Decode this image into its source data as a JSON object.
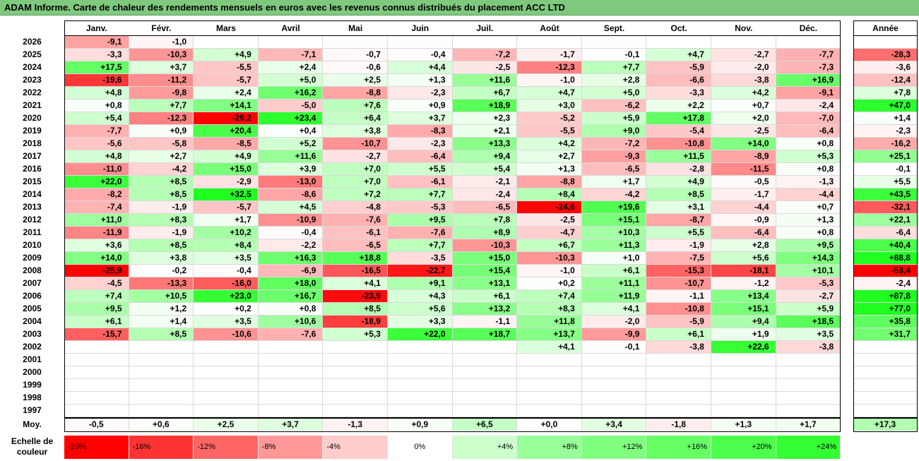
{
  "title": "ADAM Informe. Carte de chaleur des rendements mensuels en euros avec les revenus connus distribués du placement ACC LTD",
  "chart_data": {
    "type": "heatmap",
    "columns": [
      "Janv.",
      "Févr.",
      "Mars",
      "Avril",
      "Mai",
      "Juin",
      "Juil.",
      "Août",
      "Sept.",
      "Oct.",
      "Nov.",
      "Déc."
    ],
    "year_header": "Année",
    "rows": [
      {
        "year": "2026",
        "months": [
          -9.1,
          -1.0,
          null,
          null,
          null,
          null,
          null,
          null,
          null,
          null,
          null,
          null
        ],
        "annual": null
      },
      {
        "year": "2025",
        "months": [
          -3.3,
          -10.3,
          4.9,
          -7.1,
          -0.7,
          -0.4,
          -7.2,
          -1.7,
          -0.1,
          4.7,
          -2.7,
          -7.7
        ],
        "annual": -28.3
      },
      {
        "year": "2024",
        "months": [
          17.5,
          3.7,
          -5.5,
          2.4,
          -0.6,
          4.4,
          -2.5,
          -12.3,
          7.7,
          -5.9,
          -2.0,
          -7.3
        ],
        "annual": -3.6
      },
      {
        "year": "2023",
        "months": [
          -19.6,
          -11.2,
          -5.7,
          5.0,
          2.5,
          1.3,
          11.6,
          -1.0,
          2.8,
          -6.6,
          -3.8,
          16.9
        ],
        "annual": -12.4
      },
      {
        "year": "2022",
        "months": [
          4.8,
          -9.8,
          2.4,
          16.2,
          -8.8,
          -2.3,
          6.7,
          4.7,
          5.0,
          -3.3,
          4.2,
          -9.1
        ],
        "annual": 7.8
      },
      {
        "year": "2021",
        "months": [
          0.8,
          7.7,
          14.1,
          -5.0,
          7.6,
          0.9,
          18.9,
          3.0,
          -6.2,
          2.2,
          0.7,
          -2.4
        ],
        "annual": 47.0
      },
      {
        "year": "2020",
        "months": [
          5.4,
          -12.3,
          -29.2,
          23.4,
          6.4,
          3.7,
          2.3,
          -5.2,
          5.9,
          17.8,
          2.0,
          -7.0
        ],
        "annual": 1.4
      },
      {
        "year": "2019",
        "months": [
          -7.7,
          0.9,
          20.4,
          0.4,
          3.8,
          -8.3,
          2.1,
          -5.5,
          9.0,
          -5.4,
          -2.5,
          -6.4
        ],
        "annual": -2.3
      },
      {
        "year": "2018",
        "months": [
          -5.6,
          -5.8,
          -8.5,
          5.2,
          -10.7,
          -2.3,
          13.3,
          4.2,
          -7.2,
          -10.8,
          14.0,
          0.8
        ],
        "annual": -16.2
      },
      {
        "year": "2017",
        "months": [
          4.8,
          2.7,
          4.9,
          11.6,
          -2.7,
          -6.4,
          9.4,
          2.7,
          -9.3,
          11.5,
          -8.9,
          5.3
        ],
        "annual": 25.1
      },
      {
        "year": "2016",
        "months": [
          -11.0,
          -4.2,
          15.0,
          3.9,
          7.0,
          5.5,
          5.4,
          1.3,
          -6.5,
          -2.8,
          -11.5,
          0.8
        ],
        "annual": -0.1
      },
      {
        "year": "2015",
        "months": [
          22.0,
          8.5,
          -2.9,
          -13.0,
          7.0,
          -6.1,
          -2.1,
          -8.8,
          1.7,
          4.9,
          -0.5,
          -1.3
        ],
        "annual": 5.5
      },
      {
        "year": "2014",
        "months": [
          -8.2,
          8.5,
          32.5,
          -8.6,
          7.2,
          7.7,
          -2.4,
          8.4,
          -4.2,
          8.5,
          -1.7,
          -4.4
        ],
        "annual": 43.5
      },
      {
        "year": "2013",
        "months": [
          -7.4,
          -1.9,
          -5.7,
          4.5,
          -4.8,
          -5.3,
          -6.5,
          -24.6,
          19.6,
          3.1,
          -4.4,
          0.7
        ],
        "annual": -32.1
      },
      {
        "year": "2012",
        "months": [
          11.0,
          8.3,
          1.7,
          -10.9,
          -7.6,
          9.5,
          7.8,
          -2.5,
          15.1,
          -8.7,
          -0.9,
          1.3
        ],
        "annual": 22.1
      },
      {
        "year": "2011",
        "months": [
          -11.9,
          -1.9,
          10.2,
          -0.4,
          -6.1,
          -7.6,
          8.9,
          -4.7,
          10.3,
          5.5,
          -6.4,
          0.8
        ],
        "annual": -6.4
      },
      {
        "year": "2010",
        "months": [
          3.6,
          8.5,
          8.4,
          -2.2,
          -6.5,
          7.7,
          -10.3,
          6.7,
          11.3,
          -1.9,
          2.8,
          9.5
        ],
        "annual": 40.4
      },
      {
        "year": "2009",
        "months": [
          14.0,
          3.8,
          3.5,
          16.3,
          18.8,
          -3.5,
          15.0,
          -10.3,
          1.0,
          -7.5,
          5.6,
          14.3
        ],
        "annual": 88.8
      },
      {
        "year": "2008",
        "months": [
          -25.9,
          -0.2,
          -0.4,
          -6.9,
          -16.5,
          -22.7,
          15.4,
          -1.0,
          6.1,
          -15.3,
          -18.1,
          10.1
        ],
        "annual": -58.4
      },
      {
        "year": "2007",
        "months": [
          -4.5,
          -13.3,
          -16.0,
          18.0,
          4.1,
          9.1,
          13.1,
          0.2,
          11.1,
          -10.7,
          -1.2,
          -5.3
        ],
        "annual": -2.4
      },
      {
        "year": "2006",
        "months": [
          7.4,
          10.5,
          23.0,
          16.7,
          -23.9,
          4.3,
          6.1,
          7.4,
          11.9,
          -1.1,
          13.4,
          -2.7
        ],
        "annual": 87.8
      },
      {
        "year": "2005",
        "months": [
          9.5,
          1.2,
          0.2,
          0.8,
          8.5,
          5.6,
          13.2,
          8.3,
          4.1,
          -10.8,
          15.1,
          5.9
        ],
        "annual": 77.0
      },
      {
        "year": "2004",
        "months": [
          6.1,
          1.4,
          3.5,
          10.6,
          -18.9,
          3.3,
          -1.1,
          11.8,
          -2.0,
          -5.9,
          9.4,
          18.5
        ],
        "annual": 35.8
      },
      {
        "year": "2003",
        "months": [
          -15.7,
          8.5,
          -10.6,
          -7.6,
          5.3,
          22.0,
          18.7,
          13.7,
          -9.9,
          6.1,
          1.9,
          3.5
        ],
        "annual": 31.7
      },
      {
        "year": "2002",
        "months": [
          null,
          null,
          null,
          null,
          null,
          null,
          null,
          4.1,
          -0.1,
          -3.8,
          22.6,
          -3.8
        ],
        "annual": null
      },
      {
        "year": "2001",
        "months": [
          null,
          null,
          null,
          null,
          null,
          null,
          null,
          null,
          null,
          null,
          null,
          null
        ],
        "annual": null
      },
      {
        "year": "2000",
        "months": [
          null,
          null,
          null,
          null,
          null,
          null,
          null,
          null,
          null,
          null,
          null,
          null
        ],
        "annual": null
      },
      {
        "year": "1999",
        "months": [
          null,
          null,
          null,
          null,
          null,
          null,
          null,
          null,
          null,
          null,
          null,
          null
        ],
        "annual": null
      },
      {
        "year": "1998",
        "months": [
          null,
          null,
          null,
          null,
          null,
          null,
          null,
          null,
          null,
          null,
          null,
          null
        ],
        "annual": null
      },
      {
        "year": "1997",
        "months": [
          null,
          null,
          null,
          null,
          null,
          null,
          null,
          null,
          null,
          null,
          null,
          null
        ],
        "annual": null
      }
    ],
    "average": {
      "label": "Moy.",
      "months": [
        -0.5,
        0.6,
        2.5,
        3.7,
        -1.3,
        0.9,
        6.5,
        0.0,
        3.4,
        -1.8,
        1.3,
        1.7
      ],
      "annual": 17.3
    },
    "color_scale": {
      "label": "Echelle de couleur",
      "stops": [
        {
          "label": "-20%",
          "color": "#ff0000",
          "align": "left"
        },
        {
          "label": "-16%",
          "color": "#ff3333",
          "align": "left"
        },
        {
          "label": "-12%",
          "color": "#ff6666",
          "align": "left"
        },
        {
          "label": "-8%",
          "color": "#ff9999",
          "align": "left"
        },
        {
          "label": "-4%",
          "color": "#ffcccc",
          "align": "left"
        },
        {
          "label": "0%",
          "color": "#ffffff",
          "align": "center"
        },
        {
          "label": "+4%",
          "color": "#ccffcc",
          "align": "right"
        },
        {
          "label": "+8%",
          "color": "#99ff99",
          "align": "right"
        },
        {
          "label": "+12%",
          "color": "#80ff80",
          "align": "right"
        },
        {
          "label": "+16%",
          "color": "#66ff66",
          "align": "right"
        },
        {
          "label": "+20%",
          "color": "#4dff4d",
          "align": "right"
        },
        {
          "label": "+24%",
          "color": "#33ff33",
          "align": "right"
        }
      ]
    }
  }
}
